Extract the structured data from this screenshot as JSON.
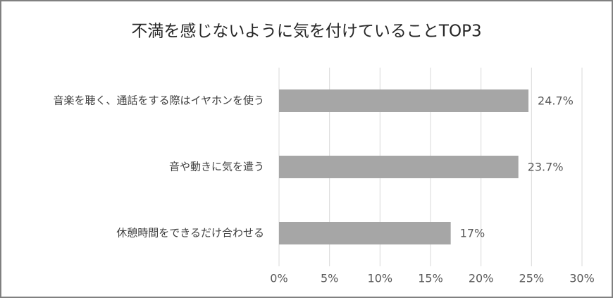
{
  "chart_data": {
    "type": "bar",
    "orientation": "horizontal",
    "title": "不満を感じないように気を付けていることTOP3",
    "categories": [
      "音楽を聴く、通話をする際はイヤホンを使う",
      "音や動きに気を遣う",
      "休憩時間をできるだけ合わせる"
    ],
    "values": [
      24.7,
      23.7,
      17
    ],
    "value_labels": [
      "24.7%",
      "23.7%",
      "17%"
    ],
    "color": "#a6a6a6",
    "xlim": [
      0,
      30
    ],
    "xticks": [
      {
        "value": 0,
        "label": "0%"
      },
      {
        "value": 5,
        "label": "5%"
      },
      {
        "value": 10,
        "label": "10%"
      },
      {
        "value": 15,
        "label": "15%"
      },
      {
        "value": 20,
        "label": "20%"
      },
      {
        "value": 25,
        "label": "25%"
      },
      {
        "value": 30,
        "label": "30%"
      }
    ],
    "grid": true
  }
}
